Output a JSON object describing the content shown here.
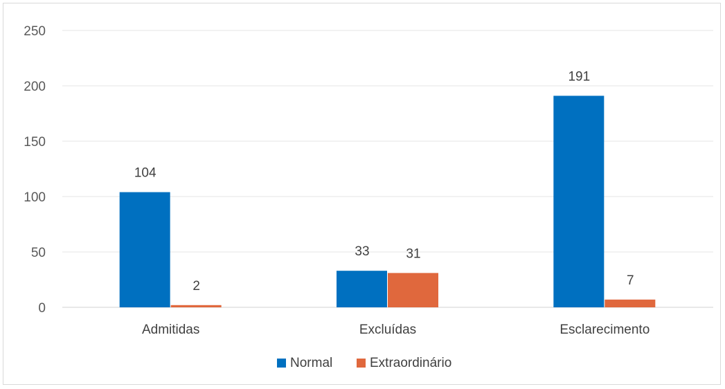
{
  "chart_data": {
    "type": "bar",
    "categories": [
      "Admitidas",
      "Excluídas",
      "Esclarecimento"
    ],
    "series": [
      {
        "name": "Normal",
        "color": "#0070c0",
        "values": [
          104,
          33,
          191
        ]
      },
      {
        "name": "Extraordinário",
        "color": "#e0683d",
        "values": [
          2,
          31,
          7
        ]
      }
    ],
    "title": "",
    "xlabel": "",
    "ylabel": "",
    "ylim": [
      0,
      250
    ],
    "yticks": [
      "0",
      "50",
      "100",
      "150",
      "200",
      "250"
    ],
    "grid": true,
    "legend_position": "bottom"
  }
}
